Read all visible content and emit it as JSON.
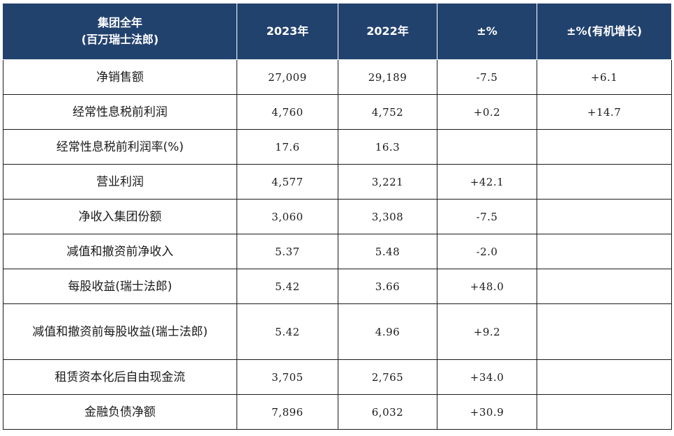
{
  "table": {
    "headers": {
      "col0_line1": "集团全年",
      "col0_line2": "(百万瑞士法郎)",
      "col1": "2023年",
      "col2": "2022年",
      "col3": "±%",
      "col4": "±%(有机增长)"
    },
    "rows": [
      {
        "label": "净销售额",
        "y2023": "27,009",
        "y2022": "29,189",
        "change": "-7.5",
        "organic": "+6.1"
      },
      {
        "label": "经常性息税前利润",
        "y2023": "4,760",
        "y2022": "4,752",
        "change": "+0.2",
        "organic": "+14.7"
      },
      {
        "label": "经常性息税前利润率(%)",
        "y2023": "17.6",
        "y2022": "16.3",
        "change": "",
        "organic": ""
      },
      {
        "label": "营业利润",
        "y2023": "4,577",
        "y2022": "3,221",
        "change": "+42.1",
        "organic": ""
      },
      {
        "label": "净收入集团份额",
        "y2023": "3,060",
        "y2022": "3,308",
        "change": "-7.5",
        "organic": ""
      },
      {
        "label": "减值和撤资前净收入",
        "y2023": "5.37",
        "y2022": "5.48",
        "change": "-2.0",
        "organic": ""
      },
      {
        "label": "每股收益(瑞士法郎)",
        "y2023": "5.42",
        "y2022": "3.66",
        "change": "+48.0",
        "organic": ""
      },
      {
        "label": "减值和撤资前每股收益(瑞士法郎)",
        "y2023": "5.42",
        "y2022": "4.96",
        "change": "+9.2",
        "organic": ""
      },
      {
        "label": "租赁资本化后自由现金流",
        "y2023": "3,705",
        "y2022": "2,765",
        "change": "+34.0",
        "organic": ""
      },
      {
        "label": "金融负债净额",
        "y2023": "7,896",
        "y2022": "6,032",
        "change": "+30.9",
        "organic": ""
      }
    ]
  }
}
